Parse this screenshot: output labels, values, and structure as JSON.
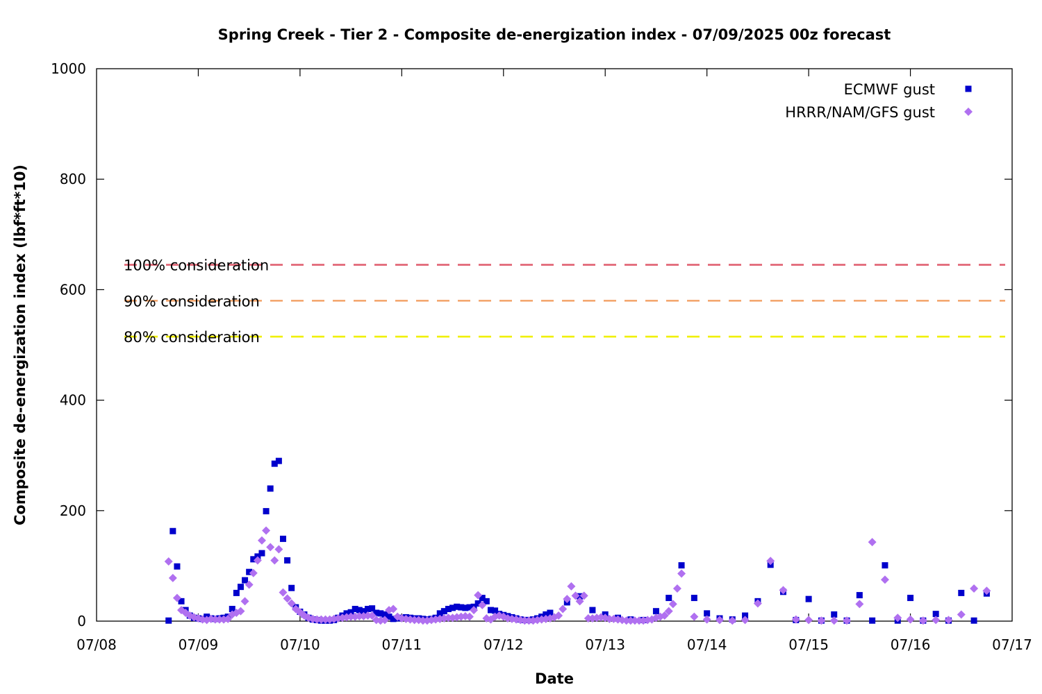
{
  "chart_data": {
    "type": "scatter",
    "title": "Spring Creek - Tier 2 - Composite de-energization index - 07/09/2025 00z forecast",
    "xlabel": "Date",
    "ylabel": "Composite de-energization index (lbf*ft*10)",
    "xlim": [
      "07/08 00:00",
      "07/17 00:00"
    ],
    "ylim": [
      0,
      1000
    ],
    "x_ticks": [
      "07/08",
      "07/09",
      "07/10",
      "07/11",
      "07/12",
      "07/13",
      "07/14",
      "07/15",
      "07/16",
      "07/17"
    ],
    "y_ticks": [
      0,
      200,
      400,
      600,
      800,
      1000
    ],
    "grid": false,
    "legend_position": "top-right",
    "thresholds": [
      {
        "label": "100% consideration",
        "value": 645,
        "color": "#e06070"
      },
      {
        "label": "90% consideration",
        "value": 580,
        "color": "#f4a870"
      },
      {
        "label": "80% consideration",
        "value": 515,
        "color": "#f0f000"
      }
    ],
    "series": [
      {
        "name": "ECMWF gust",
        "marker": "square",
        "color": "#0000cc",
        "points": [
          [
            "07/08 17:00",
            1
          ],
          [
            "07/08 18:00",
            163
          ],
          [
            "07/08 19:00",
            99
          ],
          [
            "07/08 20:00",
            36
          ],
          [
            "07/08 21:00",
            20
          ],
          [
            "07/08 22:00",
            10
          ],
          [
            "07/08 23:00",
            6
          ],
          [
            "07/09 00:00",
            5
          ],
          [
            "07/09 01:00",
            4
          ],
          [
            "07/09 02:00",
            8
          ],
          [
            "07/09 03:00",
            5
          ],
          [
            "07/09 04:00",
            4
          ],
          [
            "07/09 05:00",
            5
          ],
          [
            "07/09 06:00",
            6
          ],
          [
            "07/09 07:00",
            8
          ],
          [
            "07/09 08:00",
            22
          ],
          [
            "07/09 09:00",
            51
          ],
          [
            "07/09 10:00",
            62
          ],
          [
            "07/09 11:00",
            74
          ],
          [
            "07/09 12:00",
            89
          ],
          [
            "07/09 13:00",
            112
          ],
          [
            "07/09 14:00",
            117
          ],
          [
            "07/09 15:00",
            123
          ],
          [
            "07/09 16:00",
            199
          ],
          [
            "07/09 17:00",
            240
          ],
          [
            "07/09 18:00",
            285
          ],
          [
            "07/09 19:00",
            290
          ],
          [
            "07/09 20:00",
            149
          ],
          [
            "07/09 21:00",
            110
          ],
          [
            "07/09 22:00",
            60
          ],
          [
            "07/09 23:00",
            25
          ],
          [
            "07/10 00:00",
            17
          ],
          [
            "07/10 01:00",
            12
          ],
          [
            "07/10 02:00",
            6
          ],
          [
            "07/10 03:00",
            3
          ],
          [
            "07/10 04:00",
            2
          ],
          [
            "07/10 05:00",
            1
          ],
          [
            "07/10 06:00",
            1
          ],
          [
            "07/10 07:00",
            1
          ],
          [
            "07/10 08:00",
            2
          ],
          [
            "07/10 09:00",
            6
          ],
          [
            "07/10 10:00",
            10
          ],
          [
            "07/10 11:00",
            14
          ],
          [
            "07/10 12:00",
            16
          ],
          [
            "07/10 13:00",
            22
          ],
          [
            "07/10 14:00",
            20
          ],
          [
            "07/10 15:00",
            18
          ],
          [
            "07/10 16:00",
            22
          ],
          [
            "07/10 17:00",
            23
          ],
          [
            "07/10 18:00",
            15
          ],
          [
            "07/10 19:00",
            14
          ],
          [
            "07/10 20:00",
            12
          ],
          [
            "07/10 21:00",
            8
          ],
          [
            "07/10 22:00",
            4
          ],
          [
            "07/10 23:00",
            5
          ],
          [
            "07/11 00:00",
            6
          ],
          [
            "07/11 01:00",
            7
          ],
          [
            "07/11 02:00",
            6
          ],
          [
            "07/11 03:00",
            5
          ],
          [
            "07/11 04:00",
            5
          ],
          [
            "07/11 05:00",
            4
          ],
          [
            "07/11 06:00",
            3
          ],
          [
            "07/11 07:00",
            4
          ],
          [
            "07/11 08:00",
            6
          ],
          [
            "07/11 09:00",
            14
          ],
          [
            "07/11 10:00",
            18
          ],
          [
            "07/11 11:00",
            22
          ],
          [
            "07/11 12:00",
            24
          ],
          [
            "07/11 13:00",
            26
          ],
          [
            "07/11 14:00",
            25
          ],
          [
            "07/11 15:00",
            24
          ],
          [
            "07/11 16:00",
            25
          ],
          [
            "07/11 17:00",
            26
          ],
          [
            "07/11 18:00",
            32
          ],
          [
            "07/11 19:00",
            42
          ],
          [
            "07/11 20:00",
            36
          ],
          [
            "07/11 21:00",
            20
          ],
          [
            "07/11 22:00",
            19
          ],
          [
            "07/11 23:00",
            13
          ],
          [
            "07/12 00:00",
            11
          ],
          [
            "07/12 01:00",
            9
          ],
          [
            "07/12 02:00",
            7
          ],
          [
            "07/12 03:00",
            5
          ],
          [
            "07/12 04:00",
            3
          ],
          [
            "07/12 05:00",
            2
          ],
          [
            "07/12 06:00",
            2
          ],
          [
            "07/12 07:00",
            3
          ],
          [
            "07/12 08:00",
            5
          ],
          [
            "07/12 09:00",
            8
          ],
          [
            "07/12 10:00",
            12
          ],
          [
            "07/12 11:00",
            15
          ],
          [
            "07/12 15:00",
            34
          ],
          [
            "07/12 18:00",
            45
          ],
          [
            "07/12 21:00",
            20
          ],
          [
            "07/13 00:00",
            12
          ],
          [
            "07/13 03:00",
            6
          ],
          [
            "07/13 06:00",
            3
          ],
          [
            "07/13 09:00",
            2
          ],
          [
            "07/13 12:00",
            18
          ],
          [
            "07/13 15:00",
            42
          ],
          [
            "07/13 18:00",
            101
          ],
          [
            "07/13 21:00",
            42
          ],
          [
            "07/14 00:00",
            14
          ],
          [
            "07/14 03:00",
            5
          ],
          [
            "07/14 06:00",
            3
          ],
          [
            "07/14 09:00",
            10
          ],
          [
            "07/14 12:00",
            36
          ],
          [
            "07/14 15:00",
            102
          ],
          [
            "07/14 18:00",
            53
          ],
          [
            "07/14 21:00",
            2
          ],
          [
            "07/15 00:00",
            40
          ],
          [
            "07/15 03:00",
            1
          ],
          [
            "07/15 06:00",
            12
          ],
          [
            "07/15 09:00",
            1
          ],
          [
            "07/15 12:00",
            47
          ],
          [
            "07/15 15:00",
            1
          ],
          [
            "07/15 18:00",
            101
          ],
          [
            "07/15 21:00",
            1
          ],
          [
            "07/16 00:00",
            42
          ],
          [
            "07/16 03:00",
            1
          ],
          [
            "07/16 06:00",
            13
          ],
          [
            "07/16 09:00",
            1
          ],
          [
            "07/16 12:00",
            51
          ],
          [
            "07/16 15:00",
            1
          ],
          [
            "07/16 18:00",
            50
          ]
        ]
      },
      {
        "name": "HRRR/NAM/GFS gust",
        "marker": "diamond",
        "color": "#b070f0",
        "points": [
          [
            "07/08 17:00",
            108
          ],
          [
            "07/08 18:00",
            78
          ],
          [
            "07/08 19:00",
            42
          ],
          [
            "07/08 20:00",
            20
          ],
          [
            "07/08 21:00",
            15
          ],
          [
            "07/08 22:00",
            10
          ],
          [
            "07/08 23:00",
            7
          ],
          [
            "07/09 00:00",
            5
          ],
          [
            "07/09 01:00",
            3
          ],
          [
            "07/09 02:00",
            2
          ],
          [
            "07/09 03:00",
            4
          ],
          [
            "07/09 04:00",
            3
          ],
          [
            "07/09 05:00",
            3
          ],
          [
            "07/09 06:00",
            3
          ],
          [
            "07/09 07:00",
            4
          ],
          [
            "07/09 08:00",
            12
          ],
          [
            "07/09 09:00",
            15
          ],
          [
            "07/09 10:00",
            18
          ],
          [
            "07/09 11:00",
            36
          ],
          [
            "07/09 12:00",
            66
          ],
          [
            "07/09 13:00",
            87
          ],
          [
            "07/09 14:00",
            110
          ],
          [
            "07/09 15:00",
            146
          ],
          [
            "07/09 16:00",
            164
          ],
          [
            "07/09 17:00",
            134
          ],
          [
            "07/09 18:00",
            110
          ],
          [
            "07/09 19:00",
            130
          ],
          [
            "07/09 20:00",
            52
          ],
          [
            "07/09 21:00",
            41
          ],
          [
            "07/09 22:00",
            32
          ],
          [
            "07/09 23:00",
            22
          ],
          [
            "07/10 00:00",
            16
          ],
          [
            "07/10 01:00",
            10
          ],
          [
            "07/10 02:00",
            6
          ],
          [
            "07/10 03:00",
            4
          ],
          [
            "07/10 04:00",
            3
          ],
          [
            "07/10 05:00",
            3
          ],
          [
            "07/10 06:00",
            3
          ],
          [
            "07/10 07:00",
            3
          ],
          [
            "07/10 08:00",
            4
          ],
          [
            "07/10 09:00",
            5
          ],
          [
            "07/10 10:00",
            6
          ],
          [
            "07/10 11:00",
            7
          ],
          [
            "07/10 12:00",
            8
          ],
          [
            "07/10 13:00",
            8
          ],
          [
            "07/10 14:00",
            9
          ],
          [
            "07/10 15:00",
            9
          ],
          [
            "07/10 16:00",
            10
          ],
          [
            "07/10 17:00",
            10
          ],
          [
            "07/10 18:00",
            2
          ],
          [
            "07/10 19:00",
            1
          ],
          [
            "07/10 20:00",
            2
          ],
          [
            "07/10 21:00",
            20
          ],
          [
            "07/10 22:00",
            22
          ],
          [
            "07/10 23:00",
            8
          ],
          [
            "07/11 00:00",
            5
          ],
          [
            "07/11 01:00",
            4
          ],
          [
            "07/11 02:00",
            3
          ],
          [
            "07/11 03:00",
            2
          ],
          [
            "07/11 04:00",
            2
          ],
          [
            "07/11 05:00",
            1
          ],
          [
            "07/11 06:00",
            1
          ],
          [
            "07/11 07:00",
            2
          ],
          [
            "07/11 08:00",
            3
          ],
          [
            "07/11 09:00",
            4
          ],
          [
            "07/11 10:00",
            5
          ],
          [
            "07/11 11:00",
            6
          ],
          [
            "07/11 12:00",
            6
          ],
          [
            "07/11 13:00",
            7
          ],
          [
            "07/11 14:00",
            8
          ],
          [
            "07/11 15:00",
            9
          ],
          [
            "07/11 16:00",
            8
          ],
          [
            "07/11 17:00",
            20
          ],
          [
            "07/11 18:00",
            47
          ],
          [
            "07/11 19:00",
            29
          ],
          [
            "07/11 20:00",
            5
          ],
          [
            "07/11 21:00",
            3
          ],
          [
            "07/11 22:00",
            8
          ],
          [
            "07/11 23:00",
            10
          ],
          [
            "07/12 00:00",
            8
          ],
          [
            "07/12 01:00",
            5
          ],
          [
            "07/12 02:00",
            4
          ],
          [
            "07/12 03:00",
            3
          ],
          [
            "07/12 04:00",
            2
          ],
          [
            "07/12 05:00",
            1
          ],
          [
            "07/12 06:00",
            1
          ],
          [
            "07/12 07:00",
            1
          ],
          [
            "07/12 08:00",
            2
          ],
          [
            "07/12 09:00",
            3
          ],
          [
            "07/12 10:00",
            4
          ],
          [
            "07/12 11:00",
            5
          ],
          [
            "07/12 12:00",
            7
          ],
          [
            "07/12 13:00",
            10
          ],
          [
            "07/12 14:00",
            22
          ],
          [
            "07/12 15:00",
            40
          ],
          [
            "07/12 16:00",
            63
          ],
          [
            "07/12 17:00",
            46
          ],
          [
            "07/12 18:00",
            36
          ],
          [
            "07/12 19:00",
            46
          ],
          [
            "07/12 20:00",
            5
          ],
          [
            "07/12 21:00",
            5
          ],
          [
            "07/12 22:00",
            6
          ],
          [
            "07/12 23:00",
            7
          ],
          [
            "07/13 00:00",
            6
          ],
          [
            "07/13 01:00",
            4
          ],
          [
            "07/13 02:00",
            4
          ],
          [
            "07/13 03:00",
            3
          ],
          [
            "07/13 04:00",
            2
          ],
          [
            "07/13 05:00",
            1
          ],
          [
            "07/13 06:00",
            1
          ],
          [
            "07/13 07:00",
            1
          ],
          [
            "07/13 08:00",
            1
          ],
          [
            "07/13 09:00",
            1
          ],
          [
            "07/13 10:00",
            2
          ],
          [
            "07/13 11:00",
            3
          ],
          [
            "07/13 12:00",
            6
          ],
          [
            "07/13 13:00",
            8
          ],
          [
            "07/13 14:00",
            10
          ],
          [
            "07/13 15:00",
            18
          ],
          [
            "07/13 16:00",
            31
          ],
          [
            "07/13 17:00",
            59
          ],
          [
            "07/13 18:00",
            86
          ],
          [
            "07/13 21:00",
            8
          ],
          [
            "07/14 00:00",
            3
          ],
          [
            "07/14 03:00",
            2
          ],
          [
            "07/14 06:00",
            1
          ],
          [
            "07/14 09:00",
            2
          ],
          [
            "07/14 12:00",
            32
          ],
          [
            "07/14 15:00",
            109
          ],
          [
            "07/14 18:00",
            56
          ],
          [
            "07/14 21:00",
            3
          ],
          [
            "07/15 00:00",
            2
          ],
          [
            "07/15 03:00",
            1
          ],
          [
            "07/15 06:00",
            1
          ],
          [
            "07/15 09:00",
            1
          ],
          [
            "07/15 12:00",
            31
          ],
          [
            "07/15 15:00",
            143
          ],
          [
            "07/15 18:00",
            75
          ],
          [
            "07/15 21:00",
            6
          ],
          [
            "07/16 00:00",
            3
          ],
          [
            "07/16 03:00",
            1
          ],
          [
            "07/16 06:00",
            2
          ],
          [
            "07/16 09:00",
            2
          ],
          [
            "07/16 12:00",
            12
          ],
          [
            "07/16 15:00",
            59
          ],
          [
            "07/16 18:00",
            55
          ]
        ]
      }
    ]
  }
}
